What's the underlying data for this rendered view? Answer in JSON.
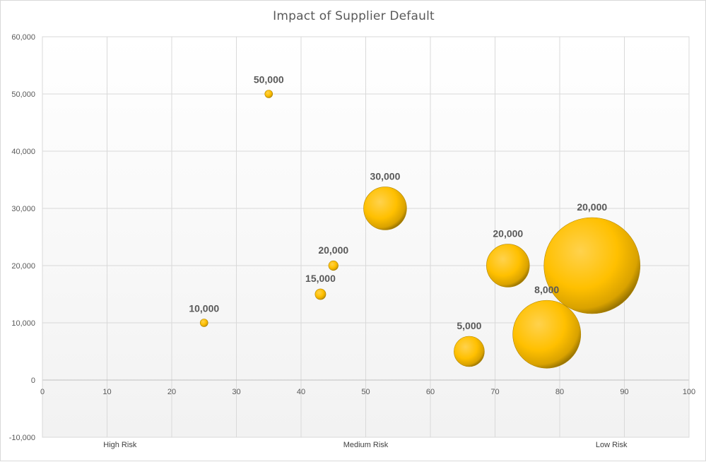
{
  "chart_data": {
    "type": "bubble",
    "title": "Impact of Supplier Default",
    "xlim": [
      0,
      100
    ],
    "ylim": [
      -10000,
      60000
    ],
    "x_ticks": [
      0,
      10,
      20,
      30,
      40,
      50,
      60,
      70,
      80,
      90,
      100
    ],
    "y_ticks": [
      -10000,
      0,
      10000,
      20000,
      30000,
      40000,
      50000,
      60000
    ],
    "x_tick_labels": [
      "0",
      "10",
      "20",
      "30",
      "40",
      "50",
      "60",
      "70",
      "80",
      "90",
      "100"
    ],
    "y_tick_labels": [
      "-10,000",
      "0",
      "10,000",
      "20,000",
      "30,000",
      "40,000",
      "50,000",
      "60,000"
    ],
    "category_labels": [
      {
        "text": "High Risk",
        "x": 12
      },
      {
        "text": "Medium Risk",
        "x": 50
      },
      {
        "text": "Low Risk",
        "x": 88
      }
    ],
    "grid": true,
    "bubble_color": "#ffc000",
    "bubble_shade": "#a07800",
    "points": [
      {
        "x": 25,
        "y": 10000,
        "size": 2,
        "label": "10,000"
      },
      {
        "x": 35,
        "y": 50000,
        "size": 2,
        "label": "50,000"
      },
      {
        "x": 43,
        "y": 15000,
        "size": 5,
        "label": "15,000"
      },
      {
        "x": 45,
        "y": 20000,
        "size": 4,
        "label": "20,000"
      },
      {
        "x": 53,
        "y": 30000,
        "size": 80,
        "label": "30,000"
      },
      {
        "x": 66,
        "y": 5000,
        "size": 40,
        "label": "5,000"
      },
      {
        "x": 72,
        "y": 20000,
        "size": 80,
        "label": "20,000"
      },
      {
        "x": 78,
        "y": 8000,
        "size": 200,
        "label": "8,000"
      },
      {
        "x": 85,
        "y": 20000,
        "size": 400,
        "label": "20,000"
      }
    ]
  }
}
